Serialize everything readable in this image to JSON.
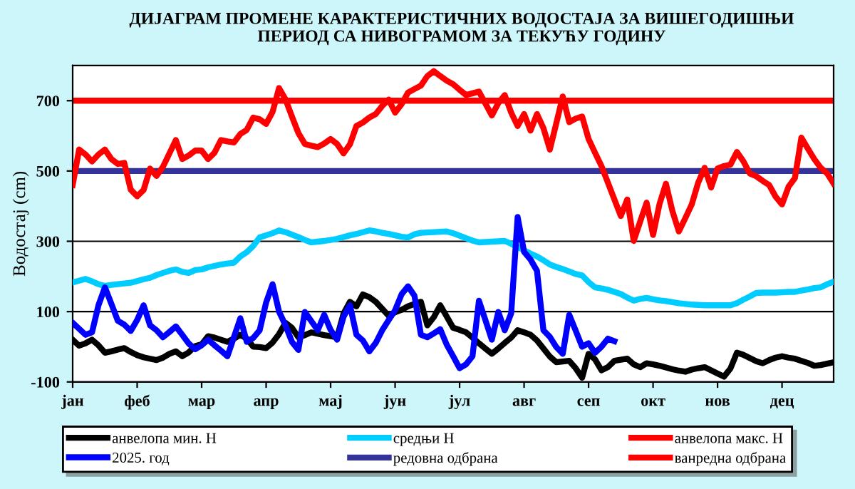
{
  "chart_data": {
    "type": "line",
    "title": "ДИЈАГРАМ ПРОМЕНЕ КАРАКТЕРИСТИЧНИХ ВОДОСТАЈА ЗА ВИШЕГОДИШЊИ\nПЕРИОД СА НИВОГРАМОМ ЗА ТЕКУЋУ ГОДИНУ",
    "ylabel": "Водостај (cm)",
    "categories": [
      "јан",
      null,
      null,
      null,
      null,
      null,
      null,
      null,
      null,
      null,
      "феб",
      null,
      null,
      null,
      null,
      null,
      null,
      null,
      null,
      null,
      "мар",
      null,
      null,
      null,
      null,
      null,
      null,
      null,
      null,
      null,
      "апр",
      null,
      null,
      null,
      null,
      null,
      null,
      null,
      null,
      null,
      "мај",
      null,
      null,
      null,
      null,
      null,
      null,
      null,
      null,
      null,
      "јун",
      null,
      null,
      null,
      null,
      null,
      null,
      null,
      null,
      null,
      "јул",
      null,
      null,
      null,
      null,
      null,
      null,
      null,
      null,
      null,
      "авг",
      null,
      null,
      null,
      null,
      null,
      null,
      null,
      null,
      null,
      "сеп",
      null,
      null,
      null,
      null,
      null,
      null,
      null,
      null,
      null,
      "окт",
      null,
      null,
      null,
      null,
      null,
      null,
      null,
      null,
      null,
      "нов",
      null,
      null,
      null,
      null,
      null,
      null,
      null,
      null,
      null,
      "дец",
      null,
      null,
      null,
      null,
      null,
      null,
      null,
      null
    ],
    "ylim": [
      -100,
      800
    ],
    "yticks": [
      -100,
      100,
      300,
      500,
      700
    ],
    "grid": "y",
    "legend": "bottom",
    "marker": "none",
    "line_style": "solid",
    "series": [
      {
        "name": "анвелопа мин. H",
        "color": "#000000",
        "values": [
          20,
          3,
          10,
          20,
          4,
          -17,
          -13,
          -8,
          -4,
          -15,
          -24,
          -30,
          -34,
          -38,
          -31,
          -20,
          -13,
          -27,
          -16,
          2,
          7,
          30,
          26,
          20,
          14,
          23,
          34,
          23,
          0,
          -1,
          -4,
          12,
          36,
          68,
          54,
          27,
          33,
          41,
          37,
          33,
          30,
          27,
          94,
          128,
          115,
          149,
          141,
          128,
          108,
          88,
          98,
          105,
          115,
          122,
          128,
          61,
          84,
          118,
          86,
          54,
          48,
          41,
          26,
          10,
          -5,
          -20,
          -5,
          11,
          26,
          47,
          41,
          34,
          18,
          -5,
          -28,
          -44,
          -42,
          -40,
          -61,
          -88,
          -20,
          -36,
          -67,
          -58,
          -40,
          -37,
          -34,
          -50,
          -58,
          -47,
          -50,
          -54,
          -59,
          -64,
          -68,
          -71,
          -65,
          -61,
          -58,
          -67,
          -76,
          -85,
          -62,
          -17,
          -23,
          -32,
          -41,
          -47,
          -38,
          -31,
          -27,
          -31,
          -34,
          -40,
          -46,
          -54,
          -52,
          -48,
          -44
        ]
      },
      {
        "name": "средњи H",
        "color": "#00ccff",
        "values": [
          183,
          188,
          193,
          186,
          178,
          173,
          176,
          178,
          180,
          182,
          187,
          192,
          196,
          204,
          210,
          216,
          220,
          213,
          210,
          218,
          220,
          226,
          230,
          234,
          237,
          239,
          257,
          269,
          287,
          311,
          317,
          323,
          331,
          326,
          319,
          312,
          304,
          297,
          299,
          301,
          304,
          307,
          312,
          317,
          321,
          326,
          331,
          328,
          324,
          321,
          317,
          313,
          311,
          320,
          324,
          325,
          326,
          327,
          328,
          323,
          316,
          309,
          302,
          297,
          298,
          299,
          300,
          301,
          293,
          284,
          274,
          265,
          257,
          246,
          234,
          227,
          221,
          214,
          207,
          203,
          184,
          169,
          166,
          162,
          156,
          150,
          140,
          131,
          136,
          139,
          135,
          132,
          130,
          127,
          124,
          122,
          120,
          119,
          118,
          118,
          118,
          118,
          118,
          124,
          134,
          143,
          153,
          154,
          154,
          154,
          155,
          156,
          156,
          160,
          163,
          167,
          169,
          178,
          185
        ]
      },
      {
        "name": "анвелопа макс. H",
        "color": "#ff0000",
        "values": [
          460,
          561,
          547,
          527,
          547,
          561,
          534,
          520,
          523,
          447,
          428,
          446,
          507,
          486,
          512,
          550,
          588,
          534,
          544,
          558,
          558,
          534,
          552,
          588,
          584,
          581,
          605,
          617,
          652,
          647,
          634,
          668,
          736,
          704,
          655,
          608,
          577,
          572,
          568,
          578,
          591,
          577,
          550,
          576,
          628,
          638,
          652,
          662,
          685,
          703,
          666,
          690,
          723,
          733,
          743,
          770,
          784,
          770,
          757,
          747,
          731,
          716,
          721,
          726,
          692,
          658,
          693,
          716,
          666,
          628,
          662,
          615,
          662,
          622,
          561,
          636,
          712,
          639,
          649,
          655,
          591,
          552,
          514,
          467,
          419,
          372,
          419,
          301,
          356,
          410,
          318,
          406,
          464,
          386,
          328,
          366,
          405,
          467,
          509,
          453,
          507,
          514,
          518,
          554,
          528,
          493,
          485,
          472,
          460,
          427,
          405,
          455,
          480,
          595,
          564,
          534,
          509,
          493,
          464
        ]
      },
      {
        "name": "2025. год",
        "color": "#0000ff",
        "values": [
          68,
          51,
          34,
          41,
          118,
          169,
          122,
          74,
          63,
          45,
          76,
          118,
          61,
          47,
          27,
          42,
          58,
          34,
          9,
          -7,
          4,
          20,
          4,
          -11,
          -27,
          27,
          81,
          14,
          25,
          47,
          126,
          178,
          100,
          61,
          14,
          -9,
          99,
          73,
          47,
          91,
          48,
          20,
          85,
          118,
          34,
          18,
          -13,
          11,
          47,
          76,
          104,
          149,
          172,
          145,
          34,
          27,
          38,
          50,
          6,
          -27,
          -61,
          -50,
          -27,
          131,
          76,
          20,
          99,
          47,
          95,
          369,
          270,
          248,
          216,
          47,
          28,
          -1,
          -20,
          91,
          46,
          0,
          10,
          -17,
          0,
          23,
          16,
          null,
          null,
          null,
          null,
          null,
          null,
          null,
          null,
          null,
          null,
          null,
          null,
          null,
          null,
          null,
          null,
          null,
          null,
          null,
          null,
          null,
          null,
          null,
          null,
          null,
          null,
          null,
          null,
          null,
          null,
          null,
          null,
          null,
          null
        ]
      }
    ],
    "ref_lines": [
      {
        "axis": "y",
        "value": 500,
        "label": "редовна одбрана",
        "color": "#333399"
      },
      {
        "axis": "y",
        "value": 700,
        "label": "ванредна одбрана",
        "color": "#ff0000"
      }
    ]
  }
}
